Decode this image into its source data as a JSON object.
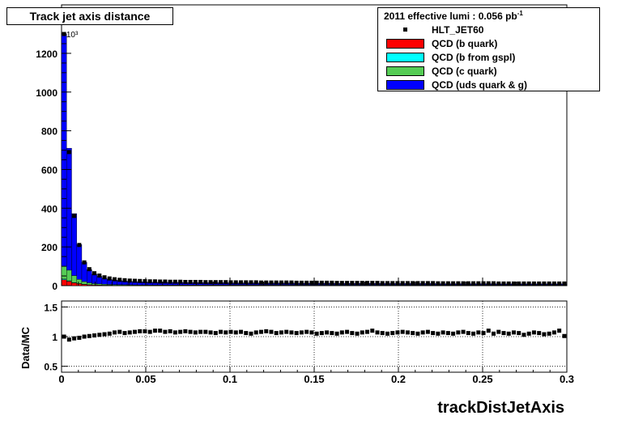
{
  "title": "Track jet axis distance",
  "legend": {
    "lumi_prefix": "2011 effective lumi : 0.056  pb",
    "lumi_exp": "-1",
    "entries": [
      {
        "label": "HLT_JET60",
        "kind": "marker",
        "color": "#000000"
      },
      {
        "label": "QCD (b quark)",
        "kind": "box",
        "color": "#ff0000"
      },
      {
        "label": "QCD (b from gspl)",
        "kind": "box",
        "color": "#00ffff"
      },
      {
        "label": "QCD (c quark)",
        "kind": "box",
        "color": "#55cc55"
      },
      {
        "label": "QCD (uds quark & g)",
        "kind": "box",
        "color": "#0000ff"
      }
    ]
  },
  "chart_data": [
    {
      "type": "bar",
      "stacked": true,
      "xlabel": "trackDistJetAxis",
      "ylabel": "",
      "y_multiplier": "×10³",
      "xlim": [
        0,
        0.3
      ],
      "ylim": [
        0,
        1300
      ],
      "yticks": [
        0,
        200,
        400,
        600,
        800,
        1000,
        1200
      ],
      "x": [
        0.0015,
        0.0045,
        0.0075,
        0.0105,
        0.0135,
        0.0165,
        0.0195,
        0.0225,
        0.0255,
        0.0285,
        0.0315,
        0.0345,
        0.0375,
        0.0405,
        0.0435,
        0.0465,
        0.0495,
        0.0525,
        0.0555,
        0.0585,
        0.0615,
        0.0645,
        0.0675,
        0.0705,
        0.0735,
        0.0765,
        0.0795,
        0.0825,
        0.0855,
        0.0885,
        0.0915,
        0.0945,
        0.0975,
        0.1005,
        0.1035,
        0.1065,
        0.1095,
        0.1125,
        0.1155,
        0.1185,
        0.1215,
        0.1245,
        0.1275,
        0.1305,
        0.1335,
        0.1365,
        0.1395,
        0.1425,
        0.1455,
        0.1485,
        0.1515,
        0.1545,
        0.1575,
        0.1605,
        0.1635,
        0.1665,
        0.1695,
        0.1725,
        0.1755,
        0.1785,
        0.1815,
        0.1845,
        0.1875,
        0.1905,
        0.1935,
        0.1965,
        0.1995,
        0.2025,
        0.2055,
        0.2085,
        0.2115,
        0.2145,
        0.2175,
        0.2205,
        0.2235,
        0.2265,
        0.2295,
        0.2325,
        0.2355,
        0.2385,
        0.2415,
        0.2445,
        0.2475,
        0.2505,
        0.2535,
        0.2565,
        0.2595,
        0.2625,
        0.2655,
        0.2685,
        0.2715,
        0.2745,
        0.2775,
        0.2805,
        0.2835,
        0.2865,
        0.2895,
        0.2925,
        0.2955,
        0.2985
      ],
      "data_series": {
        "name": "HLT_JET60",
        "values": [
          1300,
          690,
          360,
          210,
          120,
          85,
          64,
          52,
          43,
          37,
          33,
          30,
          28,
          26,
          25,
          24,
          23,
          22,
          22,
          21,
          21,
          20,
          20,
          20,
          19,
          19,
          19,
          19,
          18,
          18,
          18,
          18,
          18,
          17,
          17,
          17,
          17,
          17,
          17,
          16,
          16,
          16,
          16,
          16,
          16,
          16,
          15,
          15,
          15,
          15,
          15,
          15,
          15,
          15,
          14,
          14,
          14,
          14,
          14,
          14,
          14,
          14,
          14,
          13,
          13,
          13,
          13,
          13,
          13,
          13,
          13,
          13,
          13,
          13,
          12,
          12,
          12,
          12,
          12,
          12,
          12,
          12,
          12,
          12,
          12,
          12,
          11,
          11,
          11,
          11,
          11,
          11,
          11,
          11,
          11,
          11,
          11,
          11,
          11,
          11
        ]
      },
      "series": [
        {
          "name": "QCD (b quark)",
          "color": "#ff0000",
          "values": [
            30,
            22,
            14,
            9,
            6,
            4,
            3,
            2.5,
            2,
            2,
            1.5,
            1.5,
            1.2,
            1.2,
            1.1,
            1,
            1,
            1,
            1,
            1,
            1,
            1,
            1,
            1,
            1,
            1,
            1,
            1,
            1,
            1,
            1,
            1,
            1,
            1,
            1,
            1,
            1,
            1,
            1,
            1,
            1,
            1,
            1,
            1,
            1,
            1,
            1,
            1,
            1,
            1,
            1,
            1,
            1,
            1,
            1,
            1,
            1,
            1,
            1,
            1,
            1,
            1,
            1,
            1,
            1,
            1,
            1,
            1,
            1,
            1,
            1,
            1,
            1,
            1,
            1,
            1,
            1,
            1,
            1,
            1,
            1,
            1,
            1,
            1,
            1,
            1,
            1,
            1,
            1,
            1,
            1,
            1,
            1,
            1,
            1,
            1,
            1,
            1,
            1,
            1
          ]
        },
        {
          "name": "QCD (b from gspl)",
          "color": "#00ffff",
          "values": [
            4,
            3,
            2,
            1.5,
            1,
            0.8,
            0.6,
            0.5,
            0.4,
            0.4,
            0.3,
            0.3,
            0.3,
            0.3,
            0.3,
            0.3,
            0.3,
            0.3,
            0.3,
            0.3,
            0.3,
            0.3,
            0.3,
            0.3,
            0.3,
            0.3,
            0.3,
            0.3,
            0.3,
            0.3,
            0.3,
            0.3,
            0.3,
            0.3,
            0.3,
            0.3,
            0.3,
            0.3,
            0.3,
            0.3,
            0.3,
            0.3,
            0.3,
            0.3,
            0.3,
            0.3,
            0.3,
            0.3,
            0.3,
            0.3,
            0.3,
            0.3,
            0.3,
            0.3,
            0.3,
            0.3,
            0.3,
            0.3,
            0.3,
            0.3,
            0.3,
            0.3,
            0.3,
            0.3,
            0.3,
            0.3,
            0.3,
            0.3,
            0.3,
            0.3,
            0.3,
            0.3,
            0.3,
            0.3,
            0.3,
            0.3,
            0.3,
            0.3,
            0.3,
            0.3,
            0.3,
            0.3,
            0.3,
            0.3,
            0.3,
            0.3,
            0.3,
            0.3,
            0.3,
            0.3,
            0.3,
            0.3,
            0.3,
            0.3,
            0.3,
            0.3,
            0.3,
            0.3,
            0.3,
            0.3
          ]
        },
        {
          "name": "QCD (c quark)",
          "color": "#55cc55",
          "values": [
            66,
            55,
            36,
            22,
            14,
            10,
            7,
            6,
            5,
            4,
            3.5,
            3,
            3,
            2.8,
            2.6,
            2.5,
            2.4,
            2.3,
            2.2,
            2.1,
            2,
            2,
            2,
            2,
            1.9,
            1.9,
            1.9,
            1.8,
            1.8,
            1.8,
            1.8,
            1.8,
            1.7,
            1.7,
            1.7,
            1.7,
            1.7,
            1.6,
            1.6,
            1.6,
            1.6,
            1.6,
            1.5,
            1.5,
            1.5,
            1.5,
            1.5,
            1.5,
            1.5,
            1.4,
            1.4,
            1.4,
            1.4,
            1.4,
            1.4,
            1.4,
            1.3,
            1.3,
            1.3,
            1.3,
            1.3,
            1.3,
            1.3,
            1.3,
            1.3,
            1.2,
            1.2,
            1.2,
            1.2,
            1.2,
            1.2,
            1.2,
            1.2,
            1.2,
            1.2,
            1.1,
            1.1,
            1.1,
            1.1,
            1.1,
            1.1,
            1.1,
            1.1,
            1.1,
            1.1,
            1.1,
            1.1,
            1,
            1,
            1,
            1,
            1,
            1,
            1,
            1,
            1,
            1,
            1,
            1,
            1
          ]
        },
        {
          "name": "QCD (uds quark & g)",
          "color": "#0000ff",
          "values": [
            1200,
            630,
            320,
            180,
            100,
            68,
            49,
            39,
            31,
            26,
            23,
            21,
            19,
            17.7,
            16.9,
            16.2,
            15.3,
            14.4,
            14.5,
            13.6,
            13.7,
            13.7,
            13.7,
            13.7,
            12.8,
            12.8,
            12.8,
            12.9,
            12,
            12,
            12.1,
            12.1,
            12.1,
            11.2,
            11.2,
            11.2,
            11.2,
            11.3,
            11.3,
            10.5,
            10.5,
            10.5,
            10.6,
            10.6,
            10.6,
            10.6,
            9.7,
            9.7,
            9.7,
            9.8,
            9.8,
            9.8,
            9.8,
            9.8,
            9,
            9,
            9.1,
            9.1,
            9.1,
            9.1,
            9.1,
            9.1,
            9.1,
            8.3,
            8.3,
            8.4,
            8.4,
            8.4,
            8.4,
            8.4,
            8.4,
            8.4,
            8.4,
            8.4,
            7.6,
            7.6,
            7.6,
            7.6,
            7.6,
            7.6,
            7.6,
            7.6,
            7.6,
            7.6,
            7.6,
            7.6,
            6.8,
            6.9,
            6.9,
            6.9,
            6.9,
            6.9,
            6.9,
            6.9,
            6.9,
            6.9,
            6.9,
            6.9,
            6.9,
            6.9
          ]
        }
      ]
    },
    {
      "type": "scatter",
      "ylabel": "Data/MC",
      "xlabel": "trackDistJetAxis",
      "xlim": [
        0,
        0.3
      ],
      "ylim": [
        0.4,
        1.6
      ],
      "yticks": [
        0.5,
        1,
        1.5
      ],
      "xticks": [
        0,
        0.05,
        0.1,
        0.15,
        0.2,
        0.25,
        0.3
      ],
      "xtick_labels": [
        "0",
        "0.05",
        "0.1",
        "0.15",
        "0.2",
        "0.25",
        "0.3"
      ],
      "grid": true,
      "x": [
        0.0015,
        0.0045,
        0.0075,
        0.0105,
        0.0135,
        0.0165,
        0.0195,
        0.0225,
        0.0255,
        0.0285,
        0.0315,
        0.0345,
        0.0375,
        0.0405,
        0.0435,
        0.0465,
        0.0495,
        0.0525,
        0.0555,
        0.0585,
        0.0615,
        0.0645,
        0.0675,
        0.0705,
        0.0735,
        0.0765,
        0.0795,
        0.0825,
        0.0855,
        0.0885,
        0.0915,
        0.0945,
        0.0975,
        0.1005,
        0.1035,
        0.1065,
        0.1095,
        0.1125,
        0.1155,
        0.1185,
        0.1215,
        0.1245,
        0.1275,
        0.1305,
        0.1335,
        0.1365,
        0.1395,
        0.1425,
        0.1455,
        0.1485,
        0.1515,
        0.1545,
        0.1575,
        0.1605,
        0.1635,
        0.1665,
        0.1695,
        0.1725,
        0.1755,
        0.1785,
        0.1815,
        0.1845,
        0.1875,
        0.1905,
        0.1935,
        0.1965,
        0.1995,
        0.2025,
        0.2055,
        0.2085,
        0.2115,
        0.2145,
        0.2175,
        0.2205,
        0.2235,
        0.2265,
        0.2295,
        0.2325,
        0.2355,
        0.2385,
        0.2415,
        0.2445,
        0.2475,
        0.2505,
        0.2535,
        0.2565,
        0.2595,
        0.2625,
        0.2655,
        0.2685,
        0.2715,
        0.2745,
        0.2775,
        0.2805,
        0.2835,
        0.2865,
        0.2895,
        0.2925,
        0.2955,
        0.2985
      ],
      "values": [
        1.0,
        0.95,
        0.97,
        0.98,
        1.0,
        1.01,
        1.02,
        1.03,
        1.04,
        1.05,
        1.07,
        1.08,
        1.06,
        1.07,
        1.08,
        1.09,
        1.09,
        1.08,
        1.1,
        1.1,
        1.08,
        1.09,
        1.07,
        1.08,
        1.09,
        1.08,
        1.07,
        1.08,
        1.08,
        1.07,
        1.06,
        1.08,
        1.07,
        1.08,
        1.07,
        1.08,
        1.06,
        1.05,
        1.07,
        1.08,
        1.09,
        1.08,
        1.06,
        1.07,
        1.08,
        1.07,
        1.06,
        1.07,
        1.08,
        1.07,
        1.05,
        1.06,
        1.07,
        1.06,
        1.05,
        1.07,
        1.08,
        1.06,
        1.05,
        1.07,
        1.08,
        1.1,
        1.07,
        1.06,
        1.05,
        1.06,
        1.07,
        1.08,
        1.07,
        1.06,
        1.05,
        1.07,
        1.08,
        1.06,
        1.05,
        1.07,
        1.06,
        1.05,
        1.07,
        1.08,
        1.06,
        1.05,
        1.07,
        1.06,
        1.1,
        1.05,
        1.08,
        1.06,
        1.05,
        1.07,
        1.06,
        1.03,
        1.05,
        1.07,
        1.06,
        1.04,
        1.05,
        1.07,
        1.1,
        1.01
      ]
    }
  ]
}
